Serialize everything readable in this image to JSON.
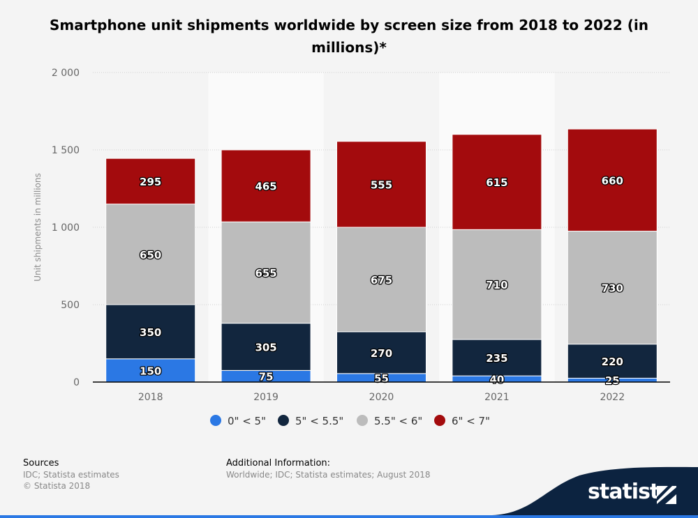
{
  "chart_data": {
    "type": "bar",
    "stacked": true,
    "title": "Smartphone unit shipments worldwide by screen size from 2018 to 2022 (in millions)*",
    "ylabel": "Unit shipments in millions",
    "ylim": [
      0,
      2000
    ],
    "yticks": [
      0,
      500,
      1000,
      1500,
      2000
    ],
    "ytick_labels": [
      "0",
      "500",
      "1 000",
      "1 500",
      "2 000"
    ],
    "grid": true,
    "legend_position": "bottom",
    "categories": [
      "2018",
      "2019",
      "2020",
      "2021",
      "2022"
    ],
    "series": [
      {
        "name": "0\" < 5\"",
        "color": "#2b78e4",
        "values": [
          150,
          75,
          55,
          40,
          25
        ]
      },
      {
        "name": "5\" < 5.5\"",
        "color": "#12263e",
        "values": [
          350,
          305,
          270,
          235,
          220
        ]
      },
      {
        "name": "5.5\" < 6\"",
        "color": "#bcbcbc",
        "values": [
          650,
          655,
          675,
          710,
          730
        ]
      },
      {
        "name": "6\" < 7\"",
        "color": "#a30b0d",
        "values": [
          295,
          465,
          555,
          615,
          660
        ]
      }
    ]
  },
  "footer": {
    "sources_heading": "Sources",
    "sources_line1": "IDC; Statista estimates",
    "sources_line2": "© Statista 2018",
    "info_heading": "Additional Information:",
    "info_text": "Worldwide; IDC; Statista estimates; August 2018"
  },
  "brand": {
    "name": "statista",
    "logo_icon": "statista-logo-icon",
    "band_color": "#0c2340",
    "accent_color": "#2b78e4"
  }
}
